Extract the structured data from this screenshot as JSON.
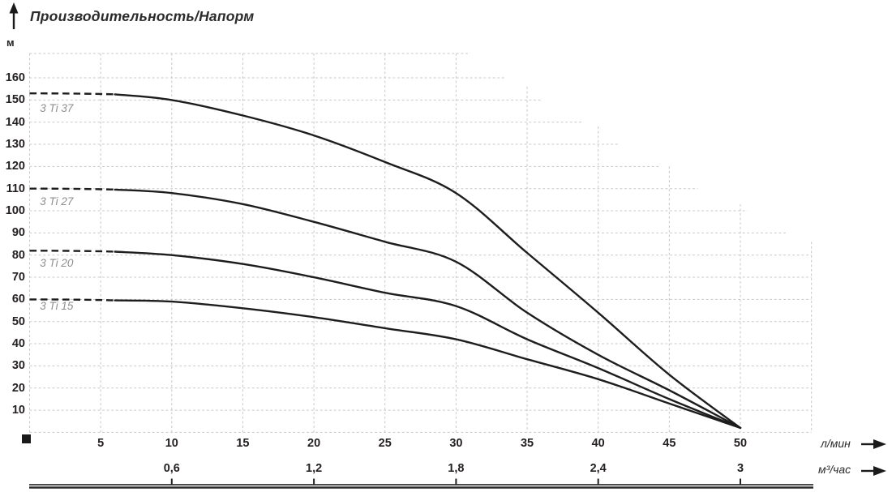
{
  "header": {
    "title": "Производительность/Напорм",
    "y_unit": "м"
  },
  "axes": {
    "x_primary": {
      "unit": "л/мин",
      "ticks": [
        5,
        10,
        15,
        20,
        25,
        30,
        35,
        40,
        45,
        50
      ]
    },
    "x_secondary": {
      "unit": "м³/час",
      "ticks": [
        {
          "q": 10,
          "label": "0,6"
        },
        {
          "q": 20,
          "label": "1,2"
        },
        {
          "q": 30,
          "label": "1,8"
        },
        {
          "q": 40,
          "label": "2,4"
        },
        {
          "q": 50,
          "label": "3"
        }
      ]
    },
    "y": {
      "ticks": [
        10,
        20,
        30,
        40,
        50,
        60,
        70,
        80,
        90,
        100,
        110,
        120,
        130,
        140,
        150,
        160
      ]
    }
  },
  "chart_data": {
    "type": "line",
    "title": "Производительность/Напорм",
    "xlabel": "л/мин (верхняя шкала) / м³/час (нижняя шкала)",
    "ylabel": "м",
    "xlim": [
      0,
      55
    ],
    "ylim": [
      0,
      171
    ],
    "grid": "dotted",
    "legend_position": "inline-left-labels",
    "x_lmin": [
      0,
      5,
      10,
      15,
      20,
      25,
      30,
      35,
      40,
      45,
      50
    ],
    "series": [
      {
        "name": "3 Ti 37",
        "values": [
          153,
          152,
          150,
          143,
          134,
          122,
          108,
          81,
          54,
          26,
          2
        ],
        "dashed_until_lmin": 6,
        "label_y_m": 146
      },
      {
        "name": "3 Ti 27",
        "values": [
          110,
          110,
          108,
          103,
          95,
          86,
          77,
          54,
          35,
          19,
          2
        ],
        "dashed_until_lmin": 6,
        "label_y_m": 104
      },
      {
        "name": "3 Ti 20",
        "values": [
          82,
          82,
          80,
          76,
          70,
          63,
          57,
          42,
          29,
          15,
          2
        ],
        "dashed_until_lmin": 6,
        "label_y_m": 76.3
      },
      {
        "name": "3 Ti 15",
        "values": [
          60,
          60,
          59,
          56,
          52,
          47,
          42,
          33,
          24,
          13,
          2
        ],
        "dashed_until_lmin": 6,
        "label_y_m": 57
      }
    ],
    "grid_h_extents": [
      {
        "v": 171,
        "q_end": 31.0
      },
      {
        "v": 160,
        "q_end": 33.4
      },
      {
        "v": 150,
        "q_end": 36.1
      },
      {
        "v": 140,
        "q_end": 38.8
      },
      {
        "v": 130,
        "q_end": 41.4
      },
      {
        "v": 120,
        "q_end": 44.3
      },
      {
        "v": 110,
        "q_end": 47.0
      },
      {
        "v": 100,
        "q_end": 50.5
      },
      {
        "v": 90,
        "q_end": 53.2
      },
      {
        "v": 80,
        "q_end": 55
      },
      {
        "v": 70,
        "q_end": 55
      },
      {
        "v": 60,
        "q_end": 55
      },
      {
        "v": 50,
        "q_end": 55
      },
      {
        "v": 40,
        "q_end": 55
      },
      {
        "v": 30,
        "q_end": 55
      },
      {
        "v": 20,
        "q_end": 55
      },
      {
        "v": 10,
        "q_end": 55
      },
      {
        "v": 0,
        "q_end": 55
      }
    ],
    "grid_v_extents": [
      {
        "q": 0,
        "v_top": 171
      },
      {
        "q": 5,
        "v_top": 171
      },
      {
        "q": 10,
        "v_top": 171
      },
      {
        "q": 15,
        "v_top": 171
      },
      {
        "q": 20,
        "v_top": 171
      },
      {
        "q": 25,
        "v_top": 171
      },
      {
        "q": 30,
        "v_top": 171
      },
      {
        "q": 35,
        "v_top": 156
      },
      {
        "q": 40,
        "v_top": 138
      },
      {
        "q": 45,
        "v_top": 120
      },
      {
        "q": 50,
        "v_top": 103
      },
      {
        "q": 55,
        "v_top": 86
      }
    ]
  },
  "colors": {
    "curve": "#1d1d1d",
    "grid": "#c7c7c7",
    "tick_text": "#231f20",
    "curve_label": "#8e8e8e",
    "axis_line": "#333333",
    "background": "#ffffff"
  }
}
